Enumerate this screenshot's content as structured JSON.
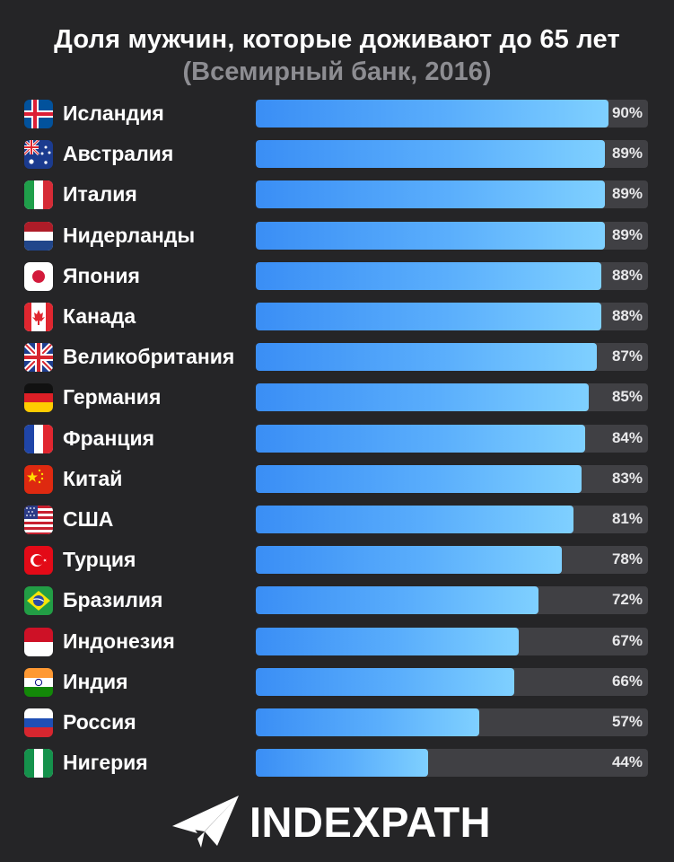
{
  "chart_data": {
    "type": "bar",
    "title": "Доля мужчин, которые доживают до 65 лет",
    "subtitle": "(Всемирный банк, 2016)",
    "categories": [
      "Исландия",
      "Австралия",
      "Италия",
      "Нидерланды",
      "Япония",
      "Канада",
      "Великобритания",
      "Германия",
      "Франция",
      "Китай",
      "США",
      "Турция",
      "Бразилия",
      "Индонезия",
      "Индия",
      "Россия",
      "Нигерия"
    ],
    "values": [
      90,
      89,
      89,
      89,
      88,
      88,
      87,
      85,
      84,
      83,
      81,
      78,
      72,
      67,
      66,
      57,
      44
    ],
    "value_labels": [
      "90%",
      "89%",
      "89%",
      "89%",
      "88%",
      "88%",
      "87%",
      "85%",
      "84%",
      "83%",
      "81%",
      "78%",
      "72%",
      "67%",
      "66%",
      "57%",
      "44%"
    ],
    "flags": [
      "iceland-flag-icon",
      "australia-flag-icon",
      "italy-flag-icon",
      "netherlands-flag-icon",
      "japan-flag-icon",
      "canada-flag-icon",
      "uk-flag-icon",
      "germany-flag-icon",
      "france-flag-icon",
      "china-flag-icon",
      "usa-flag-icon",
      "turkey-flag-icon",
      "brazil-flag-icon",
      "indonesia-flag-icon",
      "india-flag-icon",
      "russia-flag-icon",
      "nigeria-flag-icon"
    ],
    "xlim": [
      0,
      100
    ],
    "orientation": "horizontal"
  },
  "brand": {
    "name": "INDEXPATH",
    "icon": "paper-plane-icon"
  },
  "colors": {
    "background": "#252527",
    "bar_start": "#3a8ef5",
    "bar_end": "#7fd0ff",
    "track": "#404044",
    "subtitle": "#8d8d92"
  }
}
